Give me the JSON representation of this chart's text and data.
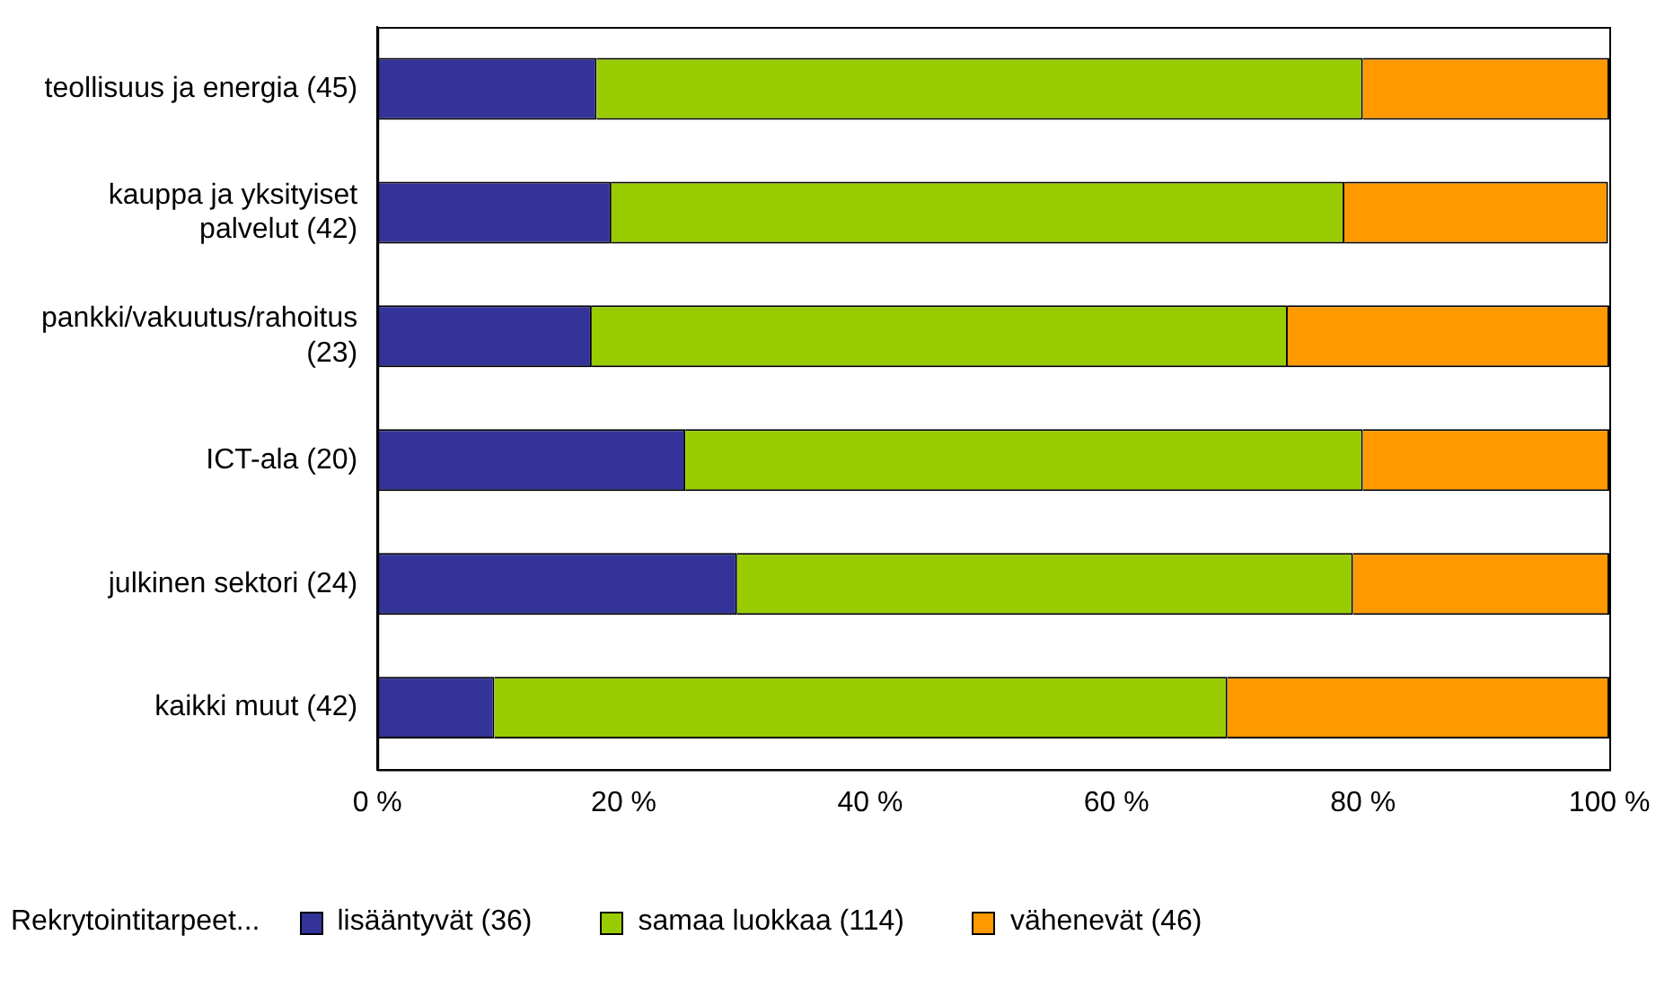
{
  "chart_data": {
    "type": "bar",
    "orientation": "horizontal",
    "stacked": true,
    "categories": [
      "teollisuus ja energia (45)",
      "kauppa ja yksityiset palvelut (42)",
      "pankki/vakuutus/rahoitus (23)",
      "ICT-ala (20)",
      "julkinen sektori (24)",
      "kaikki muut (42)"
    ],
    "series": [
      {
        "name": "lisääntyvät (36)",
        "color": "#333399",
        "values": [
          17.8,
          19.0,
          17.4,
          25.0,
          29.2,
          9.5
        ]
      },
      {
        "name": "samaa luokkaa (114)",
        "color": "#99cc00",
        "values": [
          62.2,
          59.5,
          56.5,
          55.0,
          50.0,
          59.5
        ]
      },
      {
        "name": "vähenevät (46)",
        "color": "#ff9900",
        "values": [
          20.0,
          21.4,
          26.1,
          20.0,
          20.8,
          31.0
        ]
      }
    ],
    "xlim": [
      0,
      100
    ],
    "xticks": [
      {
        "value": 0,
        "label": "0 %"
      },
      {
        "value": 20,
        "label": "20 %"
      },
      {
        "value": 40,
        "label": "40 %"
      },
      {
        "value": 60,
        "label": "60 %"
      },
      {
        "value": 80,
        "label": "80 %"
      },
      {
        "value": 100,
        "label": "100 %"
      }
    ],
    "grid": false,
    "legend": "bottom",
    "legend_title": "Rekrytointitarpeet..."
  }
}
